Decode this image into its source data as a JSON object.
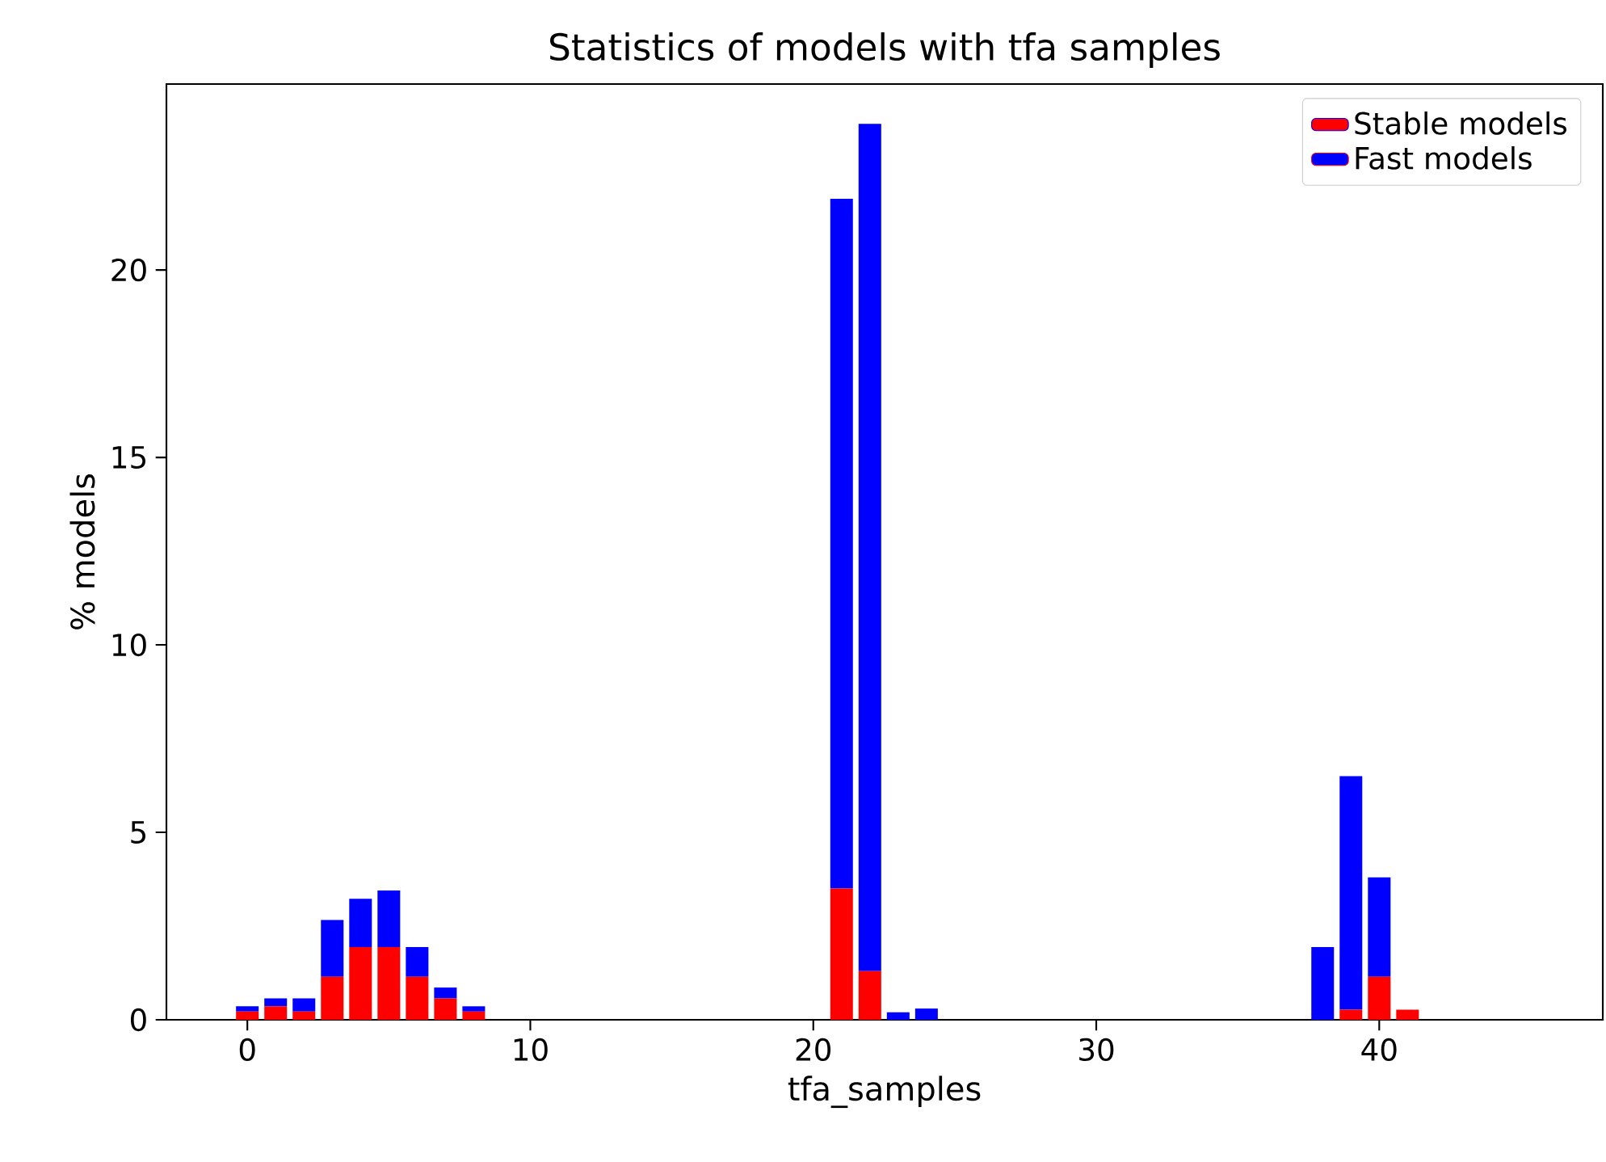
{
  "chart_data": {
    "type": "bar",
    "title": "Statistics of models with tfa samples",
    "xlabel": "tfa_samples",
    "ylabel": "% models",
    "x": [
      0,
      1,
      2,
      3,
      4,
      5,
      6,
      7,
      8,
      21,
      22,
      23,
      24,
      38,
      39,
      40,
      41
    ],
    "series": [
      {
        "name": "Stable models",
        "color": "#ff0000",
        "values": [
          0.22,
          0.36,
          0.22,
          1.15,
          1.94,
          1.94,
          1.15,
          0.57,
          0.22,
          3.5,
          1.3,
          0,
          0,
          0,
          0.27,
          1.15,
          0.27
        ]
      },
      {
        "name": "Fast models",
        "color": "#0000ff",
        "values": [
          0.14,
          0.21,
          0.35,
          1.51,
          1.29,
          1.51,
          0.79,
          0.29,
          0.14,
          18.4,
          22.6,
          0.2,
          0.3,
          1.94,
          6.23,
          2.65,
          0
        ]
      }
    ],
    "stacked": true,
    "xlim": [
      -2.86,
      47.9
    ],
    "ylim": [
      0,
      24.96
    ],
    "xticks": [
      0,
      10,
      20,
      30,
      40
    ],
    "yticks": [
      0,
      5,
      10,
      15,
      20
    ],
    "legend": "top right"
  }
}
